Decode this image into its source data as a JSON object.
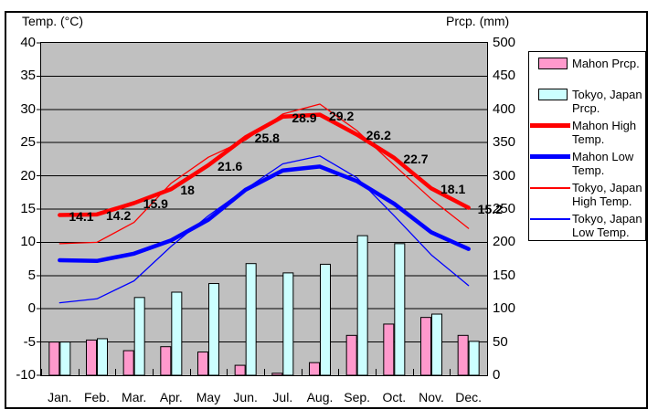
{
  "titles": {
    "left_axis": "Temp. (°C)",
    "right_axis": "Prcp. (mm)"
  },
  "colors": {
    "plot_background": "#c0c0c0",
    "gridline": "#000000",
    "mahon_prcp": "#ff99cc",
    "tokyo_prcp": "#ccffff",
    "mahon_high_temp": "#ff0000",
    "mahon_low_temp": "#0000ff",
    "tokyo_high_temp": "#ff0000",
    "tokyo_low_temp": "#0000ff"
  },
  "legend": {
    "items": [
      {
        "id": "mahon-prcp",
        "label": "Mahon Prcp.",
        "icon": "box",
        "color": "#ff99cc"
      },
      {
        "id": "tokyo-prcp",
        "label": "Tokyo, Japan Prcp.",
        "icon": "box",
        "color": "#ccffff"
      },
      {
        "id": "mahon-high",
        "label": "Mahon High Temp.",
        "icon": "thick-line",
        "color": "#ff0000"
      },
      {
        "id": "mahon-low",
        "label": "Mahon Low Temp.",
        "icon": "thick-line",
        "color": "#0000ff"
      },
      {
        "id": "tokyo-high",
        "label": "Tokyo, Japan High Temp.",
        "icon": "thin-line",
        "color": "#ff0000"
      },
      {
        "id": "tokyo-low",
        "label": "Tokyo, Japan Low Temp.",
        "icon": "thin-line",
        "color": "#0000ff"
      }
    ]
  },
  "chart_data": {
    "type": "bar+line combo climate chart",
    "categories": [
      "Jan.",
      "Feb.",
      "Mar.",
      "Apr.",
      "May",
      "Jun.",
      "Jul.",
      "Aug.",
      "Sep.",
      "Oct.",
      "Nov.",
      "Dec."
    ],
    "temp_axis": {
      "label": "Temp. (°C)",
      "min": -10,
      "max": 40,
      "tick": 5,
      "side": "left"
    },
    "prcp_axis": {
      "label": "Prcp. (mm)",
      "min": 0,
      "max": 500,
      "tick": 50,
      "side": "right"
    },
    "grid": "horizontal lines every 5°C / 50mm",
    "legend_position": "right",
    "series": [
      {
        "id": "mahon-prcp",
        "name": "Mahon Prcp.",
        "type": "bar",
        "axis": "prcp",
        "color": "#ff99cc",
        "values": [
          50,
          53,
          37,
          43,
          35,
          15,
          3,
          19,
          60,
          77,
          87,
          60
        ]
      },
      {
        "id": "tokyo-prcp",
        "name": "Tokyo, Japan Prcp.",
        "type": "bar",
        "axis": "prcp",
        "color": "#ccffff",
        "values": [
          50,
          55,
          117,
          125,
          138,
          168,
          154,
          167,
          210,
          198,
          92,
          51
        ]
      },
      {
        "id": "tokyo-high",
        "name": "Tokyo, Japan High Temp.",
        "type": "line",
        "axis": "temp",
        "color": "#ff0000",
        "width": 1.3,
        "values": [
          9.8,
          10.0,
          13.0,
          18.9,
          22.8,
          25.4,
          29.3,
          30.8,
          26.8,
          21.6,
          16.5,
          12.1
        ]
      },
      {
        "id": "tokyo-low",
        "name": "Tokyo, Japan Low Temp.",
        "type": "line",
        "axis": "temp",
        "color": "#0000ff",
        "width": 1.3,
        "values": [
          0.9,
          1.5,
          4.2,
          9.4,
          14.0,
          18.0,
          21.8,
          23.0,
          19.7,
          14.0,
          8.1,
          3.5
        ]
      },
      {
        "id": "mahon-high",
        "name": "Mahon High Temp.",
        "type": "line",
        "axis": "temp",
        "color": "#ff0000",
        "width": 4.5,
        "values": [
          14.1,
          14.2,
          15.9,
          18,
          21.6,
          25.8,
          28.9,
          29.2,
          26.2,
          22.7,
          18.1,
          15.2
        ]
      },
      {
        "id": "mahon-low",
        "name": "Mahon Low Temp.",
        "type": "line",
        "axis": "temp",
        "color": "#0000ff",
        "width": 4.5,
        "values": [
          7.3,
          7.2,
          8.3,
          10.3,
          13.4,
          17.9,
          20.8,
          21.4,
          19.2,
          15.8,
          11.5,
          9.0
        ]
      }
    ],
    "point_labels": {
      "series": "mahon-high",
      "values": [
        "14.1",
        "14.2",
        "15.9",
        "18",
        "21.6",
        "25.8",
        "28.9",
        "29.2",
        "26.2",
        "22.7",
        "18.1",
        "15.2"
      ]
    }
  }
}
